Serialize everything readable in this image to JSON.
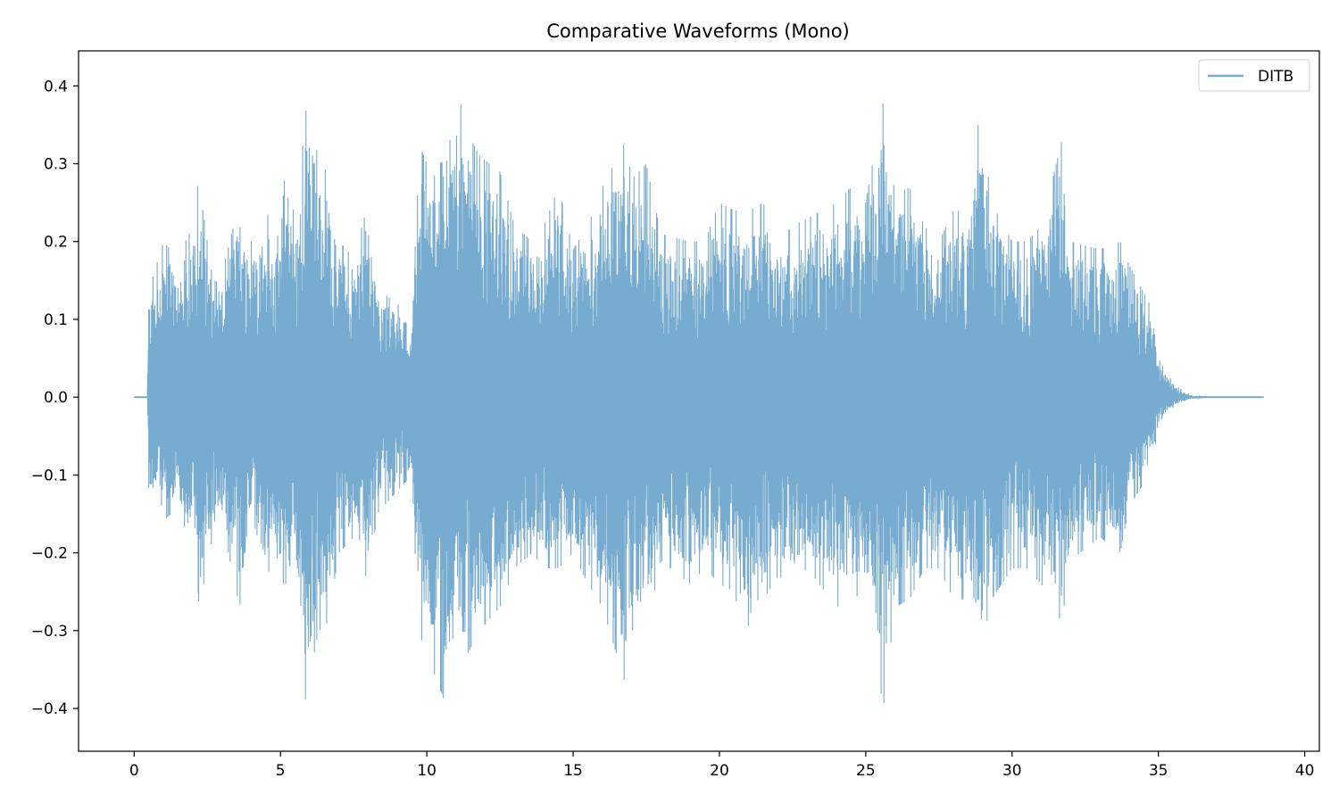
{
  "chart_data": {
    "type": "line",
    "title": "Comparative Waveforms (Mono)",
    "xlabel": "",
    "ylabel": "",
    "xlim": [
      -1.9,
      40.5
    ],
    "ylim": [
      -0.455,
      0.445
    ],
    "x_ticks": [
      0,
      5,
      10,
      15,
      20,
      25,
      30,
      35,
      40
    ],
    "y_ticks": [
      -0.4,
      -0.3,
      -0.2,
      -0.1,
      0.0,
      0.1,
      0.2,
      0.3,
      0.4
    ],
    "x_tick_labels": [
      "0",
      "5",
      "10",
      "15",
      "20",
      "25",
      "30",
      "35",
      "40"
    ],
    "y_tick_labels": [
      "−0.4",
      "−0.3",
      "−0.2",
      "−0.1",
      "0.0",
      "0.1",
      "0.2",
      "0.3",
      "0.4"
    ],
    "grid": false,
    "legend_position": "top-right",
    "series": [
      {
        "name": "DITB",
        "color": "#77abd0",
        "x_start": 0,
        "x_end": 38.6,
        "envelope_x": [
          0.0,
          0.45,
          0.5,
          0.6,
          1.0,
          1.5,
          2.0,
          2.2,
          2.5,
          3.0,
          3.6,
          4.0,
          4.5,
          5.0,
          5.2,
          5.5,
          5.9,
          6.0,
          6.3,
          6.6,
          7.0,
          7.5,
          8.0,
          8.3,
          9.0,
          9.5,
          9.7,
          10.0,
          10.5,
          10.7,
          11.0,
          11.4,
          11.8,
          12.5,
          13.0,
          13.6,
          14.0,
          14.5,
          15.0,
          15.5,
          16.0,
          16.8,
          17.0,
          17.5,
          18.0,
          19.0,
          19.5,
          20.0,
          20.5,
          21.0,
          21.5,
          22.0,
          22.5,
          23.0,
          24.0,
          24.5,
          25.0,
          25.6,
          26.0,
          26.5,
          27.0,
          27.5,
          28.0,
          28.5,
          28.9,
          29.3,
          30.0,
          30.5,
          31.0,
          31.7,
          32.0,
          33.0,
          33.7,
          34.0,
          34.7,
          35.0,
          35.3,
          35.6,
          36.0,
          36.3,
          36.6,
          38.6
        ],
        "envelope_top": [
          0.0,
          0.0,
          0.13,
          0.15,
          0.2,
          0.18,
          0.22,
          0.28,
          0.2,
          0.16,
          0.25,
          0.2,
          0.24,
          0.2,
          0.32,
          0.22,
          0.38,
          0.39,
          0.3,
          0.29,
          0.2,
          0.18,
          0.25,
          0.14,
          0.12,
          0.1,
          0.33,
          0.3,
          0.34,
          0.3,
          0.4,
          0.34,
          0.31,
          0.29,
          0.22,
          0.2,
          0.22,
          0.27,
          0.19,
          0.22,
          0.27,
          0.33,
          0.28,
          0.3,
          0.21,
          0.2,
          0.2,
          0.25,
          0.24,
          0.24,
          0.25,
          0.2,
          0.22,
          0.23,
          0.25,
          0.27,
          0.25,
          0.38,
          0.26,
          0.27,
          0.22,
          0.2,
          0.24,
          0.24,
          0.37,
          0.25,
          0.2,
          0.2,
          0.22,
          0.33,
          0.2,
          0.19,
          0.2,
          0.17,
          0.12,
          0.05,
          0.03,
          0.015,
          0.005,
          0.001,
          0.0,
          0.0
        ],
        "envelope_bottom": [
          0.0,
          0.0,
          -0.12,
          -0.14,
          -0.16,
          -0.14,
          -0.2,
          -0.3,
          -0.2,
          -0.16,
          -0.27,
          -0.2,
          -0.23,
          -0.2,
          -0.28,
          -0.22,
          -0.41,
          -0.36,
          -0.3,
          -0.29,
          -0.2,
          -0.18,
          -0.24,
          -0.15,
          -0.12,
          -0.1,
          -0.3,
          -0.33,
          -0.38,
          -0.4,
          -0.36,
          -0.33,
          -0.3,
          -0.27,
          -0.22,
          -0.2,
          -0.22,
          -0.22,
          -0.2,
          -0.24,
          -0.27,
          -0.37,
          -0.3,
          -0.3,
          -0.21,
          -0.24,
          -0.22,
          -0.24,
          -0.25,
          -0.34,
          -0.26,
          -0.23,
          -0.24,
          -0.22,
          -0.27,
          -0.26,
          -0.25,
          -0.4,
          -0.27,
          -0.26,
          -0.22,
          -0.22,
          -0.26,
          -0.26,
          -0.33,
          -0.26,
          -0.22,
          -0.22,
          -0.24,
          -0.29,
          -0.21,
          -0.18,
          -0.2,
          -0.14,
          -0.1,
          -0.04,
          -0.02,
          -0.01,
          -0.004,
          -0.001,
          0.0,
          0.0
        ]
      }
    ]
  }
}
